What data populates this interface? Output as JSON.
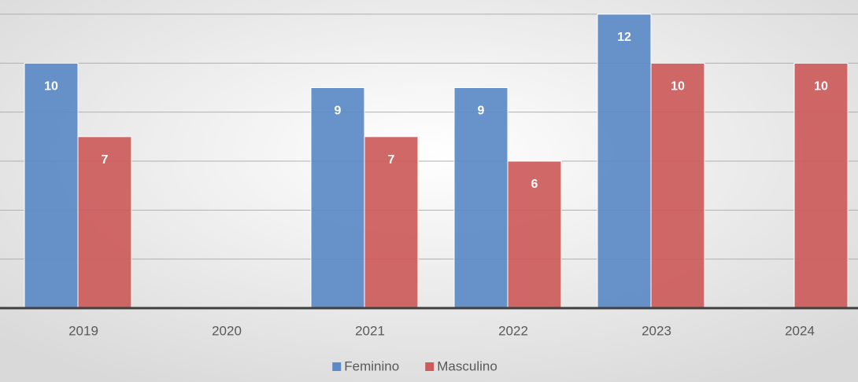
{
  "chart_data": {
    "type": "bar",
    "categories": [
      "2019",
      "2020",
      "2021",
      "2022",
      "2023",
      "2024"
    ],
    "series": [
      {
        "name": "Feminino",
        "color": "#5b8ac6",
        "values": [
          10,
          null,
          9,
          9,
          12,
          null
        ]
      },
      {
        "name": "Masculino",
        "color": "#cd5b5b",
        "values": [
          7,
          null,
          7,
          6,
          10,
          10
        ]
      }
    ],
    "ylim": [
      0,
      12
    ],
    "yticks": [
      0,
      2,
      4,
      6,
      8,
      10,
      12
    ],
    "grid": true,
    "legend": "bottom"
  }
}
